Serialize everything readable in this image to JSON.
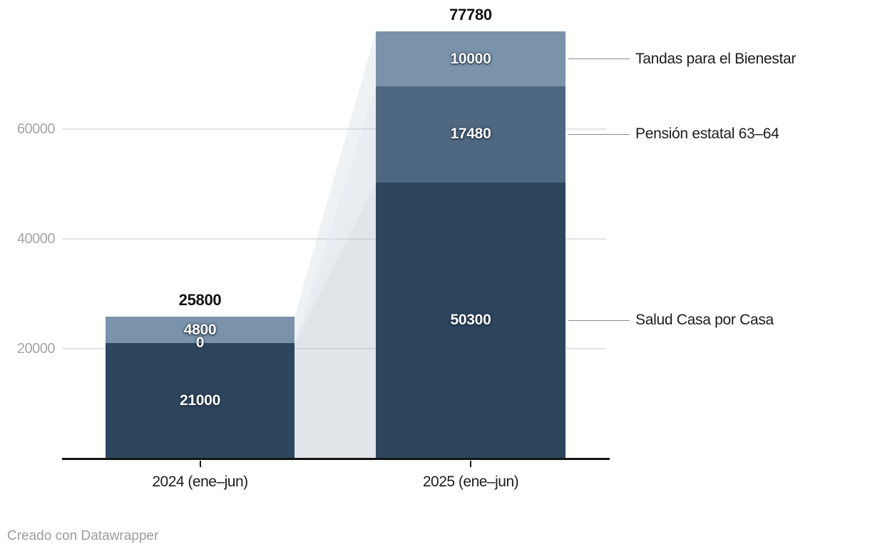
{
  "chart_data": {
    "type": "bar",
    "variant": "stacked-column-with-connector-areas",
    "title": "",
    "categories": [
      "2024 (ene–jun)",
      "2025 (ene–jun)"
    ],
    "series": [
      {
        "name": "Salud Casa por Casa",
        "color": "#2e455e",
        "values": [
          21000,
          50300
        ]
      },
      {
        "name": "Pensión estatal 63–64",
        "color": "#4f6881",
        "values": [
          0,
          17480
        ]
      },
      {
        "name": "Tandas para el Bienestar",
        "color": "#7b92ab",
        "values": [
          4800,
          10000
        ]
      }
    ],
    "totals": [
      25800,
      77780
    ],
    "bar_value_labels": [
      [
        "21000",
        "0",
        "4800"
      ],
      [
        "50300",
        "17480",
        "10000"
      ]
    ],
    "y_axis": {
      "tick_values": [
        20000,
        40000,
        60000
      ],
      "tick_labels": [
        "20000",
        "40000",
        "60000"
      ],
      "range": [
        0,
        78000
      ],
      "gridlines": true
    },
    "legend": {
      "position": "right-connected",
      "entries_top_to_bottom": [
        "Tandas para el Bienestar",
        "Pensión estatal 63–64",
        "Salud Casa por Casa"
      ]
    }
  },
  "colors": {
    "salud": "#2e455e",
    "pension": "#4f6881",
    "tandas": "#7b92ab",
    "grid": "#e4e4e4",
    "axis": "#141414",
    "y_tick_label": "#a5a5a5",
    "category_label": "#1c1c1c",
    "legend_connector_line": "#8a8a8a",
    "footer_text": "#9c9c9c",
    "connector_bands": [
      "rgba(183,191,203,0.42)",
      "rgba(193,201,213,0.36)",
      "rgba(203,211,222,0.30)"
    ]
  },
  "footer": {
    "credit_text": "Creado con Datawrapper"
  }
}
